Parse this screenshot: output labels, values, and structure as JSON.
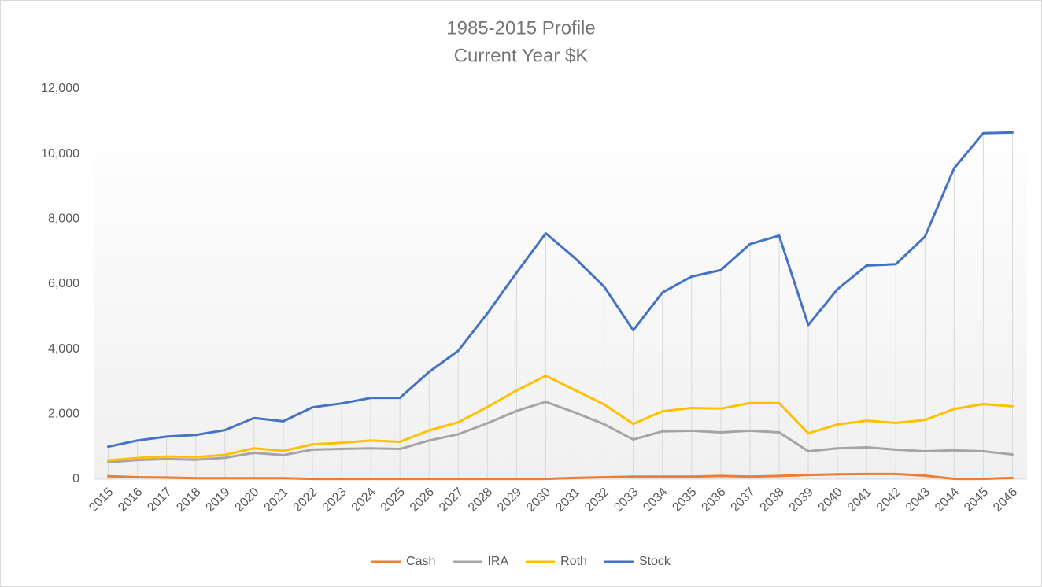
{
  "chart_data": {
    "type": "line",
    "title": "1985-2015 Profile",
    "subtitle": "Current Year $K",
    "categories": [
      "2015",
      "2016",
      "2017",
      "2018",
      "2019",
      "2020",
      "2021",
      "2022",
      "2023",
      "2024",
      "2025",
      "2026",
      "2027",
      "2028",
      "2029",
      "2030",
      "2031",
      "2032",
      "2033",
      "2034",
      "2035",
      "2036",
      "2037",
      "2038",
      "2039",
      "2040",
      "2041",
      "2042",
      "2043",
      "2044",
      "2045",
      "2046"
    ],
    "series": [
      {
        "name": "Cash",
        "color": "#ed7d31",
        "values": [
          90,
          60,
          50,
          30,
          30,
          30,
          30,
          10,
          10,
          10,
          10,
          10,
          10,
          10,
          10,
          10,
          40,
          60,
          80,
          80,
          80,
          100,
          80,
          100,
          130,
          150,
          160,
          160,
          110,
          10,
          10,
          40
        ]
      },
      {
        "name": "IRA",
        "color": "#a5a5a5",
        "values": [
          520,
          590,
          620,
          600,
          660,
          810,
          740,
          910,
          930,
          950,
          930,
          1190,
          1380,
          1720,
          2100,
          2380,
          2050,
          1690,
          1220,
          1470,
          1490,
          1440,
          1490,
          1440,
          860,
          950,
          980,
          910,
          860,
          890,
          860,
          760
        ]
      },
      {
        "name": "Roth",
        "color": "#ffc000",
        "values": [
          580,
          650,
          700,
          680,
          750,
          950,
          870,
          1070,
          1120,
          1190,
          1150,
          1500,
          1750,
          2220,
          2730,
          3180,
          2740,
          2300,
          1700,
          2090,
          2190,
          2170,
          2340,
          2340,
          1410,
          1680,
          1800,
          1730,
          1820,
          2160,
          2310,
          2240
        ]
      },
      {
        "name": "Stock",
        "color": "#4472c4",
        "values": [
          1000,
          1190,
          1310,
          1360,
          1510,
          1880,
          1780,
          2210,
          2330,
          2500,
          2500,
          3300,
          3950,
          5100,
          6350,
          7560,
          6800,
          5920,
          4580,
          5740,
          6230,
          6430,
          7230,
          7490,
          4740,
          5840,
          6570,
          6610,
          7460,
          9560,
          10640,
          10660
        ]
      }
    ],
    "ylim": [
      0,
      12000
    ],
    "yticks": [
      0,
      {
        "value": 2000,
        "label": "2,000"
      },
      {
        "value": 4000,
        "label": "4,000"
      },
      {
        "value": 6000,
        "label": "6,000"
      },
      {
        "value": 8000,
        "label": "8,000"
      },
      {
        "value": 10000,
        "label": "10,000"
      },
      {
        "value": 12000,
        "label": "12,000"
      }
    ],
    "grid": false,
    "legend": "bottom"
  }
}
